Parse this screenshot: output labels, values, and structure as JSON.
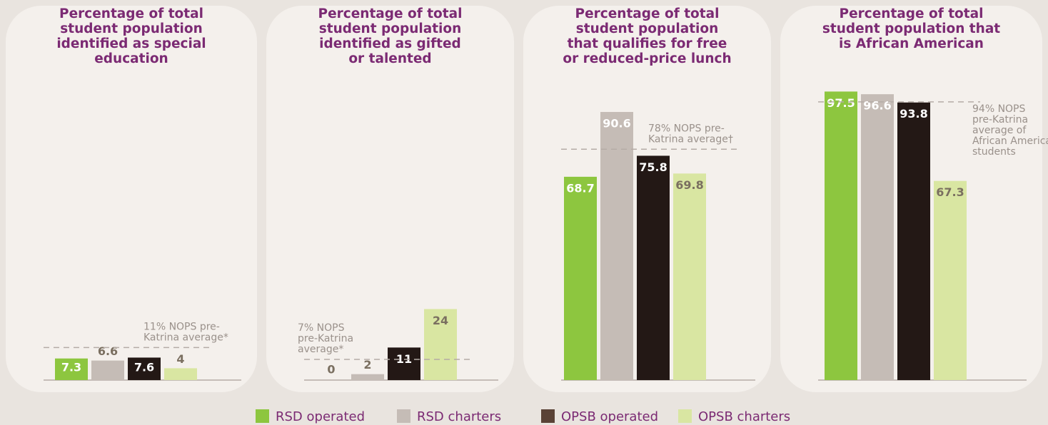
{
  "chart_data": [
    {
      "type": "bar",
      "title": [
        "Percentage of total",
        "student population",
        "identified as special",
        "education"
      ],
      "values": [
        7.3,
        6.6,
        7.6,
        4
      ],
      "ylim": [
        0,
        100
      ],
      "reference": 11,
      "annotation": [
        "11% NOPS pre-",
        "Katrina average*"
      ]
    },
    {
      "type": "bar",
      "title": [
        "Percentage of total",
        "student population",
        "identified as gifted",
        "or talented"
      ],
      "values": [
        0,
        2,
        11,
        24
      ],
      "ylim": [
        0,
        100
      ],
      "reference": 7,
      "annotation": [
        "7% NOPS",
        "pre-Katrina",
        "average*"
      ]
    },
    {
      "type": "bar",
      "title": [
        "Percentage of total",
        "student population",
        "that qualifies for free",
        "or reduced-price lunch"
      ],
      "values": [
        68.7,
        90.6,
        75.8,
        69.8
      ],
      "ylim": [
        0,
        100
      ],
      "reference": 78,
      "annotation": [
        "78% NOPS pre-",
        "Katrina average†"
      ]
    },
    {
      "type": "bar",
      "title": [
        "Percentage of total",
        "student population that",
        "is African American"
      ],
      "values": [
        97.5,
        96.6,
        93.8,
        67.3
      ],
      "ylim": [
        0,
        100
      ],
      "reference": 94,
      "annotation": [
        "94% NOPS",
        "pre-Katrina",
        "average of",
        "African American",
        "students"
      ]
    }
  ],
  "legend": [
    {
      "name": "RSD operated",
      "color": "#8dc63f"
    },
    {
      "name": "RSD charters",
      "color": "#c5bcb6"
    },
    {
      "name": "OPSB operated",
      "color": "#231815"
    },
    {
      "name": "OPSB charters",
      "color": "#d9e6a2"
    }
  ]
}
